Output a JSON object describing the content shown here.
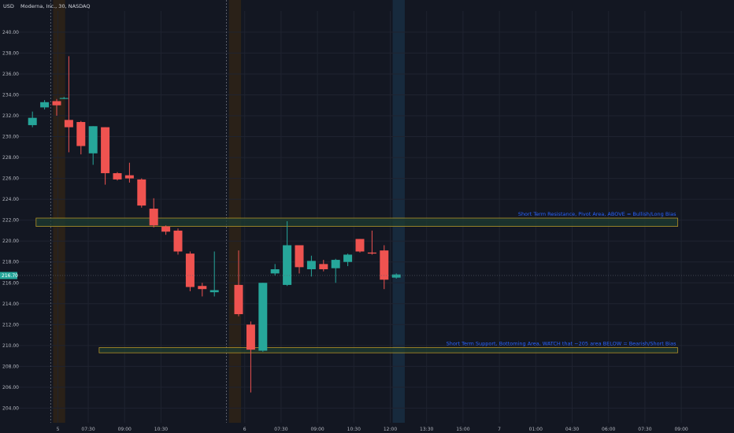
{
  "header": {
    "currency": "USD",
    "symbol": "Moderna, Inc., 30, NASDAQ"
  },
  "last_price_label": "216.70",
  "colors": {
    "up": "#26a69a",
    "down": "#ef5350",
    "background": "#131722",
    "grid": "#1f2330",
    "zone_border": "#c9a227",
    "zone_fill": "#1d3b30",
    "label": "#2962ff"
  },
  "chart_data": {
    "type": "candlestick",
    "ylim": [
      202.6,
      241.5
    ],
    "y_ticks": [
      "204.00",
      "206.00",
      "208.00",
      "210.00",
      "212.00",
      "214.00",
      "216.00",
      "218.00",
      "220.00",
      "222.00",
      "224.00",
      "226.00",
      "228.00",
      "230.00",
      "232.00",
      "234.00",
      "236.00",
      "238.00",
      "240.00"
    ],
    "x_ticks": [
      {
        "label": "5",
        "pos": 0.1
      },
      {
        "label": "07:30",
        "pos": 2.6
      },
      {
        "label": "09:00",
        "pos": 5.6
      },
      {
        "label": "10:30",
        "pos": 8.6
      },
      {
        "label": "6",
        "pos": 15.5
      },
      {
        "label": "07:30",
        "pos": 18.5
      },
      {
        "label": "09:00",
        "pos": 21.5
      },
      {
        "label": "10:30",
        "pos": 24.5
      },
      {
        "label": "12:00",
        "pos": 27.5
      },
      {
        "label": "13:30",
        "pos": 30.5
      },
      {
        "label": "15:00",
        "pos": 33.5
      },
      {
        "label": "7",
        "pos": 36.5
      },
      {
        "label": "01:00",
        "pos": 39.5
      },
      {
        "label": "04:30",
        "pos": 42.5
      },
      {
        "label": "06:00",
        "pos": 45.5
      },
      {
        "label": "07:30",
        "pos": 48.5
      },
      {
        "label": "09:00",
        "pos": 51.5
      }
    ],
    "candles": [
      {
        "i": -2,
        "o": 231.1,
        "h": 232.4,
        "l": 230.9,
        "c": 231.8
      },
      {
        "i": -1,
        "o": 232.8,
        "h": 233.5,
        "l": 232.6,
        "c": 233.3
      },
      {
        "i": 0,
        "o": 233.4,
        "h": 233.6,
        "l": 232.0,
        "c": 233.0
      },
      {
        "i": 0.6,
        "o": 233.7,
        "h": 233.8,
        "l": 233.6,
        "c": 233.7
      },
      {
        "i": 1,
        "o": 231.6,
        "h": 237.7,
        "l": 228.5,
        "c": 230.9
      },
      {
        "i": 2,
        "o": 231.4,
        "h": 231.5,
        "l": 228.3,
        "c": 229.1
      },
      {
        "i": 3,
        "o": 228.4,
        "h": 231.0,
        "l": 227.3,
        "c": 231.0
      },
      {
        "i": 4,
        "o": 230.9,
        "h": 230.9,
        "l": 225.4,
        "c": 226.5
      },
      {
        "i": 5,
        "o": 226.5,
        "h": 226.6,
        "l": 225.8,
        "c": 225.9
      },
      {
        "i": 6,
        "o": 226.3,
        "h": 227.5,
        "l": 225.6,
        "c": 226.0
      },
      {
        "i": 7,
        "o": 225.9,
        "h": 226.0,
        "l": 223.2,
        "c": 223.4
      },
      {
        "i": 8,
        "o": 223.1,
        "h": 224.1,
        "l": 221.3,
        "c": 221.5
      },
      {
        "i": 9,
        "o": 221.4,
        "h": 221.5,
        "l": 220.6,
        "c": 220.9
      },
      {
        "i": 10,
        "o": 221.0,
        "h": 221.2,
        "l": 218.7,
        "c": 219.0
      },
      {
        "i": 11,
        "o": 218.8,
        "h": 219.0,
        "l": 215.2,
        "c": 215.6
      },
      {
        "i": 12,
        "o": 215.7,
        "h": 216.0,
        "l": 214.7,
        "c": 215.4
      },
      {
        "i": 13,
        "o": 215.1,
        "h": 219.0,
        "l": 214.7,
        "c": 215.3
      },
      {
        "i": 15,
        "o": 215.8,
        "h": 219.1,
        "l": 212.8,
        "c": 213.0
      },
      {
        "i": 16,
        "o": 212.0,
        "h": 212.3,
        "l": 205.5,
        "c": 209.6
      },
      {
        "i": 17,
        "o": 209.5,
        "h": 216.0,
        "l": 209.4,
        "c": 216.0
      },
      {
        "i": 18,
        "o": 216.9,
        "h": 217.8,
        "l": 216.7,
        "c": 217.3
      },
      {
        "i": 19,
        "o": 215.8,
        "h": 221.9,
        "l": 215.7,
        "c": 219.6
      },
      {
        "i": 20,
        "o": 219.6,
        "h": 219.6,
        "l": 216.9,
        "c": 217.5
      },
      {
        "i": 21,
        "o": 217.3,
        "h": 218.6,
        "l": 216.6,
        "c": 218.1
      },
      {
        "i": 22,
        "o": 217.8,
        "h": 218.2,
        "l": 217.1,
        "c": 217.3
      },
      {
        "i": 23,
        "o": 217.4,
        "h": 218.3,
        "l": 216.0,
        "c": 218.2
      },
      {
        "i": 24,
        "o": 218.0,
        "h": 218.8,
        "l": 217.6,
        "c": 218.7
      },
      {
        "i": 25,
        "o": 220.2,
        "h": 220.2,
        "l": 218.9,
        "c": 219.0
      },
      {
        "i": 26,
        "o": 218.9,
        "h": 221.0,
        "l": 218.7,
        "c": 218.8
      },
      {
        "i": 27,
        "o": 219.1,
        "h": 219.6,
        "l": 215.4,
        "c": 216.3
      },
      {
        "i": 28,
        "o": 216.5,
        "h": 216.9,
        "l": 216.4,
        "c": 216.8
      }
    ],
    "zones": [
      {
        "name": "resistance",
        "label": "Short Term Resistance, Pivot Area, ABOVE = Bullish/Long Bias",
        "y_low": 221.4,
        "y_high": 222.2,
        "x_start": -1.7,
        "x_end": 51.2
      },
      {
        "name": "support",
        "label": "Short Term Support, Bottoming Area, WATCH that ~205 area BELOW = Bearish/Short Bias",
        "y_low": 209.3,
        "y_high": 209.8,
        "x_start": 3.5,
        "x_end": 51.2
      }
    ],
    "session_breaks": [
      -0.5,
      14.0
    ],
    "pre_market_bands": [
      {
        "start": -0.3,
        "end": 0.7
      },
      {
        "start": 14.2,
        "end": 15.2
      }
    ],
    "highlight_band": {
      "start": 27.7,
      "end": 28.7
    },
    "last_price": 216.7
  }
}
